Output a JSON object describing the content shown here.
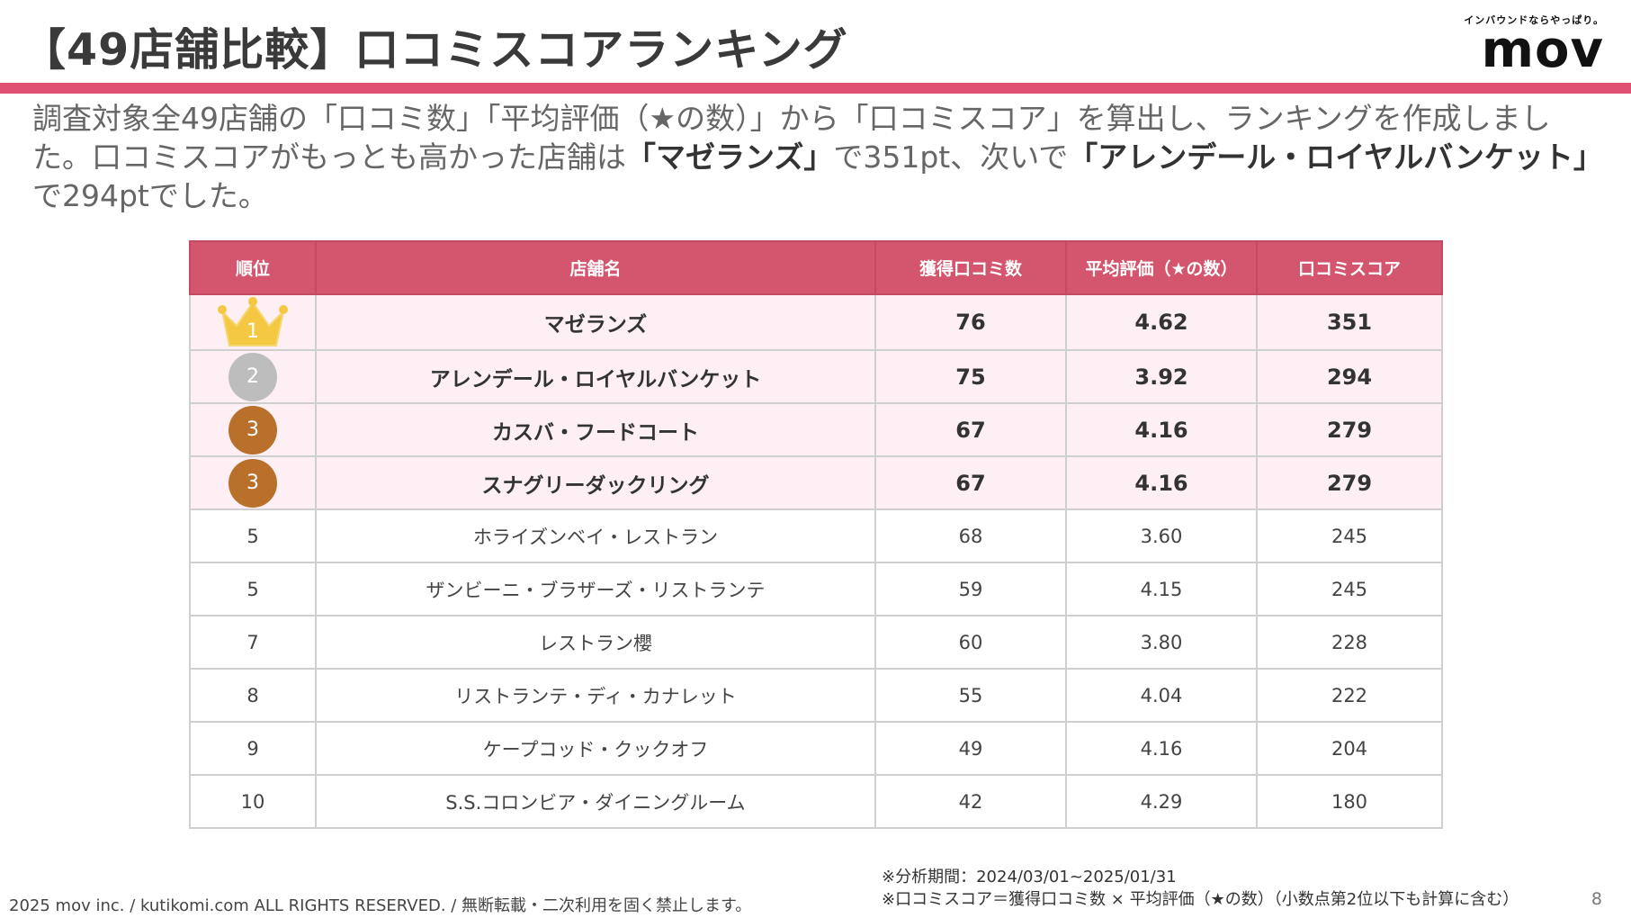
{
  "title": "【49店舗比較】口コミスコアランキング",
  "logo": {
    "tagline": "インバウンドならやっぱり。",
    "wordmark": "mov"
  },
  "intro": {
    "part1": "調査対象全49店舗の「口コミ数」「平均評価（★の数）」から「口コミスコア」を算出し、ランキングを作成しました。口コミスコアがもっとも高かった店舗は",
    "bold1": "「マゼランズ」",
    "part2": "で351pt、次いで",
    "bold2": "「アレンデール・ロイヤルバンケット」",
    "part3": "で294ptでした。"
  },
  "table": {
    "headers": [
      "順位",
      "店舗名",
      "獲得口コミ数",
      "平均評価（★の数）",
      "口コミスコア"
    ],
    "rows": [
      {
        "rank": "1",
        "name": "マゼランズ",
        "reviews": "76",
        "avg": "4.62",
        "score": "351",
        "medal": "gold",
        "medal_color": "#f4c842"
      },
      {
        "rank": "2",
        "name": "アレンデール・ロイヤルバンケット",
        "reviews": "75",
        "avg": "3.92",
        "score": "294",
        "medal": "silver",
        "medal_color": "#bdbdbd"
      },
      {
        "rank": "3",
        "name": "カスバ・フードコート",
        "reviews": "67",
        "avg": "4.16",
        "score": "279",
        "medal": "bronze",
        "medal_color": "#b8702a"
      },
      {
        "rank": "3",
        "name": "スナグリーダックリング",
        "reviews": "67",
        "avg": "4.16",
        "score": "279",
        "medal": "bronze",
        "medal_color": "#b8702a"
      },
      {
        "rank": "5",
        "name": "ホライズンベイ・レストラン",
        "reviews": "68",
        "avg": "3.60",
        "score": "245"
      },
      {
        "rank": "5",
        "name": "ザンビーニ・ブラザーズ・リストランテ",
        "reviews": "59",
        "avg": "4.15",
        "score": "245"
      },
      {
        "rank": "7",
        "name": "レストラン櫻",
        "reviews": "60",
        "avg": "3.80",
        "score": "228"
      },
      {
        "rank": "8",
        "name": "リストランテ・ディ・カナレット",
        "reviews": "55",
        "avg": "4.04",
        "score": "222"
      },
      {
        "rank": "9",
        "name": "ケープコッド・クックオフ",
        "reviews": "49",
        "avg": "4.16",
        "score": "204"
      },
      {
        "rank": "10",
        "name": "S.S.コロンビア・ダイニングルーム",
        "reviews": "42",
        "avg": "4.29",
        "score": "180"
      }
    ]
  },
  "notes": {
    "period": "※分析期間：2024/03/01~2025/01/31",
    "formula": "※口コミスコア＝獲得口コミ数 × 平均評価（★の数）（小数点第2位以下も計算に含む）"
  },
  "footer": "2025 mov inc. / kutikomi.com ALL RIGHTS RESERVED. / 無断転載・二次利用を固く禁止します。",
  "page_number": "8",
  "colors": {
    "accent": "#e05070",
    "header_bg": "#d4566e",
    "top_row_bg": "#fdeff3"
  }
}
